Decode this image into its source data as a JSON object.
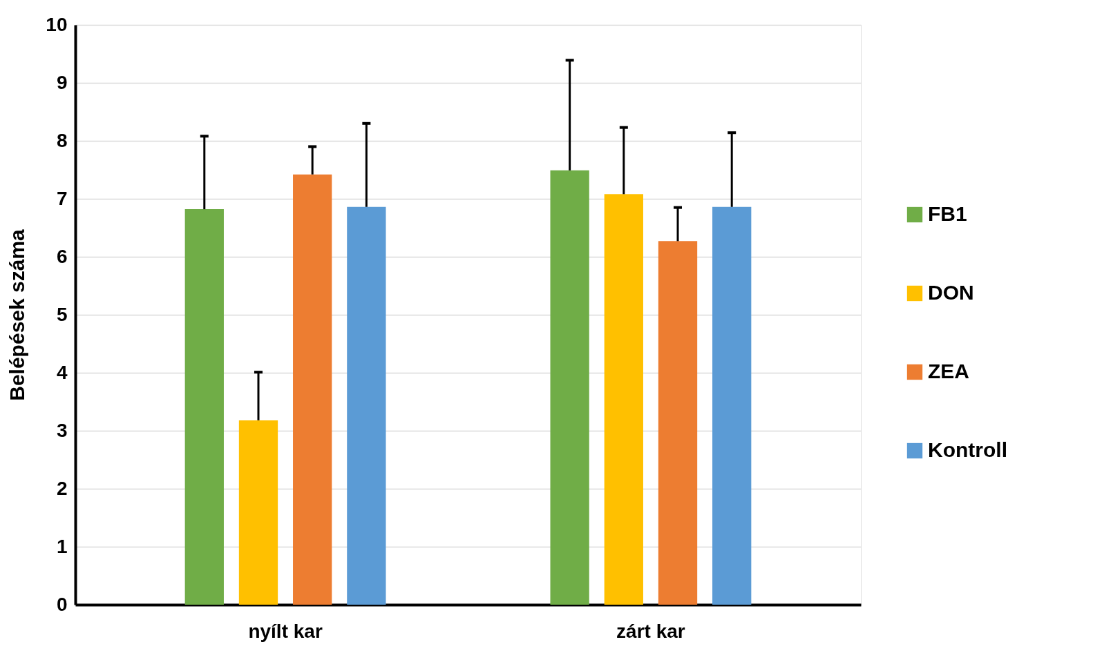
{
  "chart_data": {
    "type": "bar",
    "ylabel": "Belépések száma",
    "categories": [
      "nyílt kar",
      "zárt kar"
    ],
    "series": [
      {
        "name": "FB1",
        "color": "#70ad47",
        "values": [
          6.82,
          7.49
        ],
        "errors": [
          [
            6.82,
            8.08
          ],
          [
            7.49,
            9.39
          ]
        ]
      },
      {
        "name": "DON",
        "color": "#ffc000",
        "values": [
          3.18,
          7.08
        ],
        "errors": [
          [
            3.18,
            4.01
          ],
          [
            7.08,
            8.23
          ]
        ]
      },
      {
        "name": "ZEA",
        "color": "#ed7d31",
        "values": [
          7.42,
          6.27
        ],
        "errors": [
          [
            7.42,
            7.9
          ],
          [
            6.27,
            6.85
          ]
        ]
      },
      {
        "name": "Kontroll",
        "color": "#5b9bd5",
        "values": [
          6.86,
          6.86
        ],
        "errors": [
          [
            6.86,
            8.3
          ],
          [
            6.86,
            8.14
          ]
        ]
      }
    ],
    "ylim": [
      0,
      10
    ],
    "yticks": [
      0,
      1,
      2,
      3,
      4,
      5,
      6,
      7,
      8,
      9,
      10
    ],
    "grid": "y",
    "legend": "right"
  }
}
